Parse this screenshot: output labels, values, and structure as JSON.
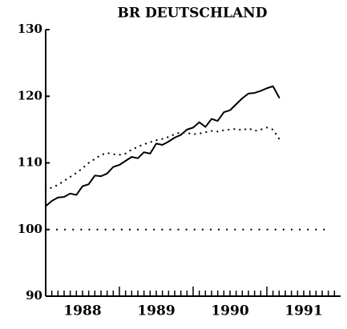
{
  "chart_data": {
    "type": "line",
    "title": "BR DEUTSCHLAND",
    "x": [
      1988,
      1988.083,
      1988.167,
      1988.25,
      1988.333,
      1988.417,
      1988.5,
      1988.583,
      1988.667,
      1988.75,
      1988.833,
      1988.917,
      1989,
      1989.083,
      1989.167,
      1989.25,
      1989.333,
      1989.417,
      1989.5,
      1989.583,
      1989.667,
      1989.75,
      1989.833,
      1989.917,
      1990,
      1990.083,
      1990.167,
      1990.25,
      1990.333,
      1990.417,
      1990.5,
      1990.583,
      1990.667,
      1990.75,
      1990.833,
      1990.917,
      1991,
      1991.083,
      1991.167
    ],
    "series": [
      {
        "color": "#000000",
        "dash": "solid",
        "values": [
          103.5,
          104.3,
          104.8,
          104.9,
          105.4,
          105.2,
          106.5,
          106.8,
          108.1,
          108.0,
          108.4,
          109.4,
          109.7,
          110.3,
          110.9,
          110.7,
          111.6,
          111.4,
          112.9,
          112.7,
          113.2,
          113.8,
          114.2,
          115.0,
          115.3,
          116.1,
          115.4,
          116.6,
          116.3,
          117.6,
          117.9,
          118.8,
          119.7,
          120.4,
          120.5,
          120.8,
          121.2,
          121.5,
          119.8
        ]
      },
      {
        "color": "#000000",
        "dash": "dotted",
        "values": [
          105.9,
          106.3,
          106.7,
          107.3,
          107.9,
          108.5,
          109.2,
          110.0,
          110.6,
          111.2,
          111.5,
          111.3,
          111.2,
          111.4,
          112.0,
          112.4,
          112.8,
          113.1,
          113.4,
          113.6,
          113.9,
          114.3,
          114.6,
          114.5,
          114.3,
          114.4,
          114.6,
          114.8,
          114.7,
          114.9,
          115.0,
          115.1,
          114.9,
          115.2,
          114.8,
          115.0,
          115.3,
          115.0,
          113.6
        ]
      }
    ],
    "reference_line": 100,
    "xlim": [
      1988,
      1992
    ],
    "xticks": [
      {
        "value": 1988.5,
        "label": "1988"
      },
      {
        "value": 1989.5,
        "label": "1989"
      },
      {
        "value": 1990.5,
        "label": "1990"
      },
      {
        "value": 1991.5,
        "label": "1991"
      }
    ],
    "ylim": [
      90,
      130
    ],
    "yticks": [
      90,
      100,
      110,
      120,
      130
    ]
  }
}
